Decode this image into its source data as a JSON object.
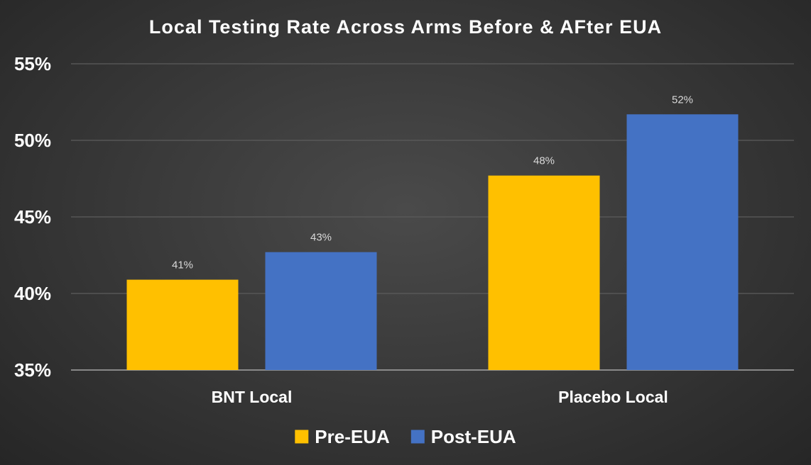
{
  "chart_data": {
    "type": "bar",
    "title": "Local Testing Rate Across Arms Before & AFter EUA",
    "categories": [
      "BNT Local",
      "Placebo Local"
    ],
    "series": [
      {
        "name": "Pre-EUA",
        "color": "#FFC000",
        "values": [
          40.9,
          47.7
        ],
        "labels": [
          "41%",
          "48%"
        ]
      },
      {
        "name": "Post-EUA",
        "color": "#4472C4",
        "values": [
          42.7,
          51.7
        ],
        "labels": [
          "43%",
          "52%"
        ]
      }
    ],
    "ylim": [
      35,
      55
    ],
    "yticks": [
      {
        "value": 35,
        "label": "35%"
      },
      {
        "value": 40,
        "label": "40%"
      },
      {
        "value": 45,
        "label": "45%"
      },
      {
        "value": 50,
        "label": "50%"
      },
      {
        "value": 55,
        "label": "55%"
      }
    ],
    "xlabel": "",
    "ylabel": "",
    "grid": true,
    "legend_position": "bottom-center"
  }
}
